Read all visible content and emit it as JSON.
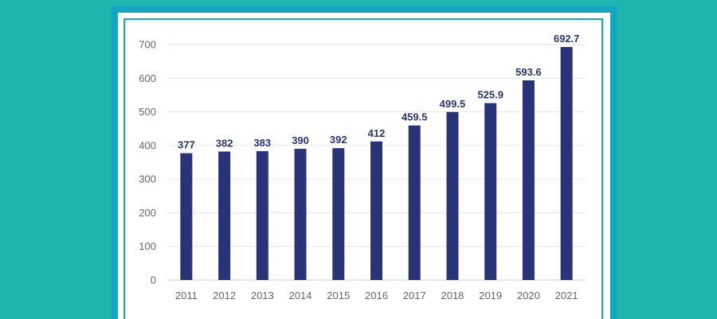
{
  "chart_data": {
    "type": "bar",
    "categories": [
      "2011",
      "2012",
      "2013",
      "2014",
      "2015",
      "2016",
      "2017",
      "2018",
      "2019",
      "2020",
      "2021"
    ],
    "values": [
      377,
      382,
      383,
      390,
      392,
      412,
      459.5,
      499.5,
      525.9,
      593.6,
      692.7
    ],
    "data_labels": [
      "377",
      "382",
      "383",
      "390",
      "392",
      "412",
      "459.5",
      "499.5",
      "525.9",
      "593.6",
      "692.7"
    ],
    "title": "",
    "xlabel": "",
    "ylabel": "",
    "ylim": [
      0,
      700
    ],
    "yticks": [
      0,
      100,
      200,
      300,
      400,
      500,
      600,
      700
    ],
    "grid": true,
    "bar_color": "#2a3378",
    "grid_color": "#e6e6e6",
    "background_color": "#1db5ad",
    "frame_color": "#12a6c4"
  }
}
